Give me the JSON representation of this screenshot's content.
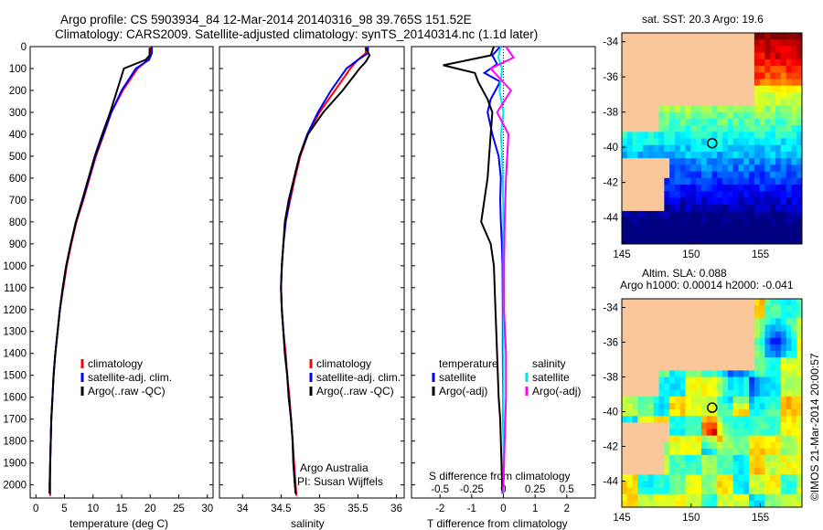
{
  "page": {
    "title_line1": "Argo profile: CS 5903934_84 12-Mar-2014 20140316_98 39.765S 151.52E",
    "title_line2": "Climatology: CARS2009. Satellite-adjusted climatology: synTS_20140314.nc (1.1d later)",
    "side_label": "©IMOS 21-Mar-2014 20:00:57",
    "credit_line1": "Argo Australia",
    "credit_line2": "PI: Susan Wijffels"
  },
  "colors": {
    "climatology": "#ff0000",
    "satellite": "#0000ff",
    "argo": "#000000",
    "s_satellite": "#00e5ee",
    "s_argo": "#ff00ff",
    "land": "#f9c79a"
  },
  "chart_data": [
    {
      "id": "temperature",
      "type": "line",
      "xlabel": "temperature (deg C)",
      "ylabel": "",
      "xlim": [
        -1,
        31
      ],
      "ylim": [
        2060,
        0
      ],
      "xticks": [
        0,
        5,
        10,
        15,
        20,
        25,
        30
      ],
      "yticks": [
        0,
        100,
        200,
        300,
        400,
        500,
        600,
        700,
        800,
        900,
        1000,
        1100,
        1200,
        1300,
        1400,
        1500,
        1600,
        1700,
        1800,
        1900,
        2000
      ],
      "legend": [
        "climatology",
        "satellite-adj. clim.",
        "Argo(..raw -QC)"
      ],
      "legend_placement": "lower-center",
      "series": [
        {
          "name": "climatology",
          "color": "#ff0000",
          "x": [
            20.2,
            20.2,
            19.6,
            17.8,
            15.2,
            13.2,
            11.9,
            10.5,
            9.4,
            8.3,
            7.1,
            6.2,
            5.4,
            4.8,
            4.2,
            3.8,
            3.4,
            3.1,
            2.9,
            2.7,
            2.6,
            2.5,
            2.5,
            2.5
          ],
          "y": [
            0,
            30,
            60,
            100,
            200,
            300,
            400,
            500,
            600,
            700,
            800,
            900,
            1000,
            1100,
            1200,
            1300,
            1400,
            1500,
            1600,
            1700,
            1800,
            1900,
            2000,
            2050
          ]
        },
        {
          "name": "satellite-adj. clim.",
          "color": "#0000ff",
          "x": [
            20.3,
            20.3,
            19.8,
            17.5,
            15.0,
            13.2,
            11.8,
            10.4,
            9.3,
            8.2,
            7.0,
            6.1,
            5.3,
            4.7,
            4.2,
            3.8,
            3.4,
            3.1,
            2.9,
            2.7,
            2.6,
            2.5,
            2.4,
            2.4
          ],
          "y": [
            0,
            30,
            60,
            100,
            200,
            300,
            400,
            500,
            600,
            700,
            800,
            900,
            1000,
            1100,
            1200,
            1300,
            1400,
            1500,
            1600,
            1700,
            1800,
            1900,
            2000,
            2040
          ]
        },
        {
          "name": "Argo(..raw -QC)",
          "color": "#000000",
          "x": [
            19.9,
            19.9,
            19.2,
            15.4,
            14.2,
            13.0,
            11.6,
            10.3,
            9.2,
            8.1,
            7.0,
            6.1,
            5.3,
            4.7,
            4.2,
            3.8,
            3.4,
            3.1,
            2.9,
            2.7,
            2.6,
            2.5,
            2.4,
            2.4
          ],
          "y": [
            5,
            40,
            60,
            100,
            200,
            300,
            400,
            500,
            600,
            700,
            800,
            900,
            1000,
            1100,
            1200,
            1300,
            1400,
            1500,
            1600,
            1700,
            1800,
            1900,
            2000,
            2040
          ]
        }
      ]
    },
    {
      "id": "salinity",
      "type": "line",
      "xlabel": "salinity",
      "ylabel": "",
      "xlim": [
        33.7,
        36.1
      ],
      "ylim": [
        2060,
        0
      ],
      "xticks": [
        34,
        34.5,
        35,
        35.5,
        36
      ],
      "legend": [
        "climatology",
        "satellite-adj. clim.",
        "Argo(..raw -QC)"
      ],
      "legend_placement": "lower-center",
      "series": [
        {
          "name": "climatology",
          "color": "#ff0000",
          "x": [
            35.6,
            35.6,
            35.5,
            35.4,
            35.2,
            35.0,
            34.85,
            34.75,
            34.68,
            34.62,
            34.56,
            34.53,
            34.51,
            34.5,
            34.51,
            34.53,
            34.56,
            34.58,
            34.61,
            34.63,
            34.65,
            34.67,
            34.69,
            34.7
          ],
          "y": [
            0,
            30,
            60,
            100,
            200,
            300,
            400,
            500,
            600,
            700,
            800,
            900,
            1000,
            1100,
            1200,
            1300,
            1400,
            1500,
            1600,
            1700,
            1800,
            1900,
            2000,
            2050
          ]
        },
        {
          "name": "satellite-adj. clim.",
          "color": "#0000ff",
          "x": [
            35.63,
            35.63,
            35.5,
            35.35,
            35.15,
            34.98,
            34.84,
            34.74,
            34.67,
            34.61,
            34.56,
            34.53,
            34.51,
            34.5,
            34.51,
            34.53,
            34.55,
            34.58,
            34.6,
            34.63,
            34.65,
            34.66,
            34.68,
            34.69
          ],
          "y": [
            0,
            30,
            60,
            100,
            200,
            300,
            400,
            500,
            600,
            700,
            800,
            900,
            1000,
            1100,
            1200,
            1300,
            1400,
            1500,
            1600,
            1700,
            1800,
            1900,
            2000,
            2040
          ]
        },
        {
          "name": "Argo(..raw -QC)",
          "color": "#000000",
          "x": [
            35.6,
            35.65,
            35.6,
            35.52,
            35.3,
            35.05,
            34.85,
            34.74,
            34.67,
            34.6,
            34.55,
            34.53,
            34.51,
            34.5,
            34.51,
            34.53,
            34.55,
            34.58,
            34.6,
            34.63,
            34.65,
            34.66,
            34.68,
            34.69
          ],
          "y": [
            5,
            40,
            70,
            100,
            200,
            300,
            400,
            500,
            600,
            700,
            800,
            900,
            1000,
            1100,
            1200,
            1300,
            1400,
            1500,
            1600,
            1700,
            1800,
            1900,
            2000,
            2040
          ]
        }
      ]
    },
    {
      "id": "differences",
      "type": "line",
      "xlabel": "T difference from climatology",
      "xlabel_top": "S difference from climatology",
      "xlim": [
        -2.9,
        2.9
      ],
      "ylim": [
        2060,
        0
      ],
      "xticks": [
        -2,
        -1,
        0,
        1,
        2
      ],
      "xticks_s": [
        -0.5,
        -0.25,
        0,
        0.25,
        0.5
      ],
      "legend_t_title": "temperature",
      "legend_s_title": "salinity",
      "legend_t": [
        "satellite",
        "Argo(-adj)"
      ],
      "legend_s": [
        "satellite",
        "Argo(-adj)"
      ],
      "legend_placement": "lower-center",
      "series": [
        {
          "name": "T satellite",
          "color": "#0000ff",
          "x": [
            -0.1,
            -0.35,
            -0.2,
            -0.6,
            -0.1,
            -0.4,
            -0.5,
            -0.35,
            -0.15,
            -0.08,
            -0.1,
            -0.08,
            -0.05,
            -0.03,
            -0.02,
            -0.02,
            -0.01,
            -0.01,
            0.0,
            0.0,
            0.0,
            0.0
          ],
          "y": [
            0,
            40,
            80,
            120,
            160,
            240,
            300,
            400,
            500,
            600,
            700,
            800,
            900,
            1000,
            1200,
            1400,
            1600,
            1700,
            1800,
            1900,
            2000,
            2040
          ]
        },
        {
          "name": "T Argo(-adj)",
          "color": "#000000",
          "x": [
            -0.3,
            -0.4,
            -1.9,
            -0.9,
            -0.8,
            -0.5,
            -0.35,
            -0.4,
            -0.45,
            -0.5,
            -0.6,
            -0.7,
            -0.4,
            -0.3,
            -0.25,
            -0.2,
            -0.15,
            -0.1,
            -0.08,
            -0.06,
            -0.04,
            -0.03
          ],
          "y": [
            0,
            40,
            85,
            120,
            160,
            240,
            300,
            400,
            500,
            600,
            700,
            800,
            900,
            1000,
            1200,
            1400,
            1600,
            1700,
            1800,
            1900,
            2000,
            2040
          ]
        },
        {
          "name": "S satellite",
          "color": "#00e5ee",
          "x": [
            -0.02,
            -0.04,
            -0.01,
            -0.03,
            0.0,
            -0.02,
            -0.01,
            -0.005,
            0.0,
            0.0,
            0.0,
            0.0,
            0.0,
            0.0,
            0.0,
            0.0,
            0.0
          ],
          "y": [
            0,
            50,
            100,
            200,
            300,
            400,
            500,
            600,
            800,
            1000,
            1200,
            1400,
            1600,
            1800,
            1900,
            2000,
            2040
          ]
        },
        {
          "name": "S Argo(-adj)",
          "color": "#ff00ff",
          "x": [
            0.02,
            0.08,
            -0.1,
            0.06,
            -0.05,
            0.04,
            0.03,
            0.02,
            0.01,
            0.005,
            0.005,
            0.02,
            0.02,
            0.01,
            0.005,
            0.0,
            -0.01
          ],
          "y": [
            0,
            50,
            100,
            200,
            300,
            400,
            500,
            600,
            800,
            1000,
            1200,
            1400,
            1600,
            1800,
            1900,
            2000,
            2040
          ]
        }
      ]
    },
    {
      "id": "sst_map",
      "type": "heatmap",
      "title": "sat. SST: 20.3  Argo: 19.6",
      "xlim": [
        145,
        158
      ],
      "ylim": [
        -45.5,
        -33.5
      ],
      "xticks": [
        145,
        150,
        155
      ],
      "yticks": [
        -34,
        -36,
        -38,
        -40,
        -42,
        -44
      ],
      "marker": {
        "lon": 151.52,
        "lat": -39.77
      }
    },
    {
      "id": "sla_map",
      "type": "heatmap",
      "title_line1": "Altim. SLA: 0.088",
      "title_line2": "Argo h1000: 0.00014  h2000: -0.041",
      "xlim": [
        145,
        158
      ],
      "ylim": [
        -45.5,
        -33.5
      ],
      "xticks": [
        145,
        150,
        155
      ],
      "yticks": [
        -34,
        -36,
        -38,
        -40,
        -42,
        -44
      ],
      "marker": {
        "lon": 151.52,
        "lat": -39.77
      }
    }
  ]
}
